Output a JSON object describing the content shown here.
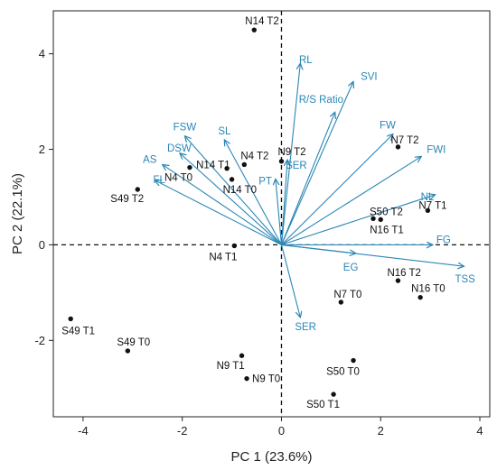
{
  "chart_data": {
    "type": "scatter",
    "subtype": "pca-biplot",
    "xlabel": "PC 1 (23.6%)",
    "ylabel": "PC 2 (22.1%)",
    "xlim": [
      -4.6,
      4.2
    ],
    "ylim": [
      -3.6,
      4.9
    ],
    "x_ticks": [
      -4,
      -2,
      0,
      2,
      4
    ],
    "y_ticks": [
      -2,
      0,
      2,
      4
    ],
    "grid": false,
    "zero_lines": "dashed",
    "colors": {
      "points": "#111111",
      "vectors": "#2a86b5",
      "vector_labels": "#2a86b5",
      "axes": "#222222"
    },
    "points": [
      {
        "label": "N14 T2",
        "x": -0.55,
        "y": 4.5
      },
      {
        "label": "N9 T2",
        "x": 0.0,
        "y": 1.75
      },
      {
        "label": "N14 T1",
        "x": -1.1,
        "y": 1.6
      },
      {
        "label": "N4 T2",
        "x": -0.75,
        "y": 1.68
      },
      {
        "label": "N4 T0",
        "x": -1.85,
        "y": 1.62
      },
      {
        "label": "N14 T0",
        "x": -1.0,
        "y": 1.37
      },
      {
        "label": "S49 T2",
        "x": -2.9,
        "y": 1.16
      },
      {
        "label": "N4 T1",
        "x": -0.95,
        "y": -0.02
      },
      {
        "label": "N7 T2",
        "x": 2.35,
        "y": 2.05
      },
      {
        "label": "S50 T2",
        "x": 1.85,
        "y": 0.55
      },
      {
        "label": "N16 T1",
        "x": 2.0,
        "y": 0.53
      },
      {
        "label": "N7 T1",
        "x": 2.95,
        "y": 0.72
      },
      {
        "label": "N16 T2",
        "x": 2.35,
        "y": -0.75
      },
      {
        "label": "N16 T0",
        "x": 2.8,
        "y": -1.1
      },
      {
        "label": "N7 T0",
        "x": 1.2,
        "y": -1.2
      },
      {
        "label": "S49 T1",
        "x": -4.25,
        "y": -1.55
      },
      {
        "label": "S49 T0",
        "x": -3.1,
        "y": -2.22
      },
      {
        "label": "N9 T1",
        "x": -0.8,
        "y": -2.32
      },
      {
        "label": "N9 T0",
        "x": -0.7,
        "y": -2.8
      },
      {
        "label": "S50 T0",
        "x": 1.45,
        "y": -2.42
      },
      {
        "label": "S50 T1",
        "x": 1.05,
        "y": -3.13
      }
    ],
    "loadings": [
      {
        "label": "RL",
        "x": 0.38,
        "y": 3.8
      },
      {
        "label": "SVI",
        "x": 1.45,
        "y": 3.42
      },
      {
        "label": "R/S Ratio",
        "x": 1.08,
        "y": 2.78
      },
      {
        "label": "FSW",
        "x": -1.95,
        "y": 2.28
      },
      {
        "label": "DSW",
        "x": -2.05,
        "y": 1.92
      },
      {
        "label": "SL",
        "x": -1.15,
        "y": 2.2
      },
      {
        "label": "AS",
        "x": -2.4,
        "y": 1.68
      },
      {
        "label": "FL",
        "x": -2.55,
        "y": 1.35
      },
      {
        "label": "SER",
        "x": 0.12,
        "y": 1.78
      },
      {
        "label": "PT",
        "x": -0.12,
        "y": 1.38
      },
      {
        "label": "FW",
        "x": 2.25,
        "y": 2.32
      },
      {
        "label": "FWI",
        "x": 2.82,
        "y": 1.85
      },
      {
        "label": "NL",
        "x": 3.1,
        "y": 1.05
      },
      {
        "label": "FG",
        "x": 3.05,
        "y": 0.0
      },
      {
        "label": "TSS",
        "x": 3.68,
        "y": -0.45
      },
      {
        "label": "EG",
        "x": 1.5,
        "y": -0.18
      },
      {
        "label": "SER",
        "x": 0.38,
        "y": -1.52
      }
    ]
  }
}
